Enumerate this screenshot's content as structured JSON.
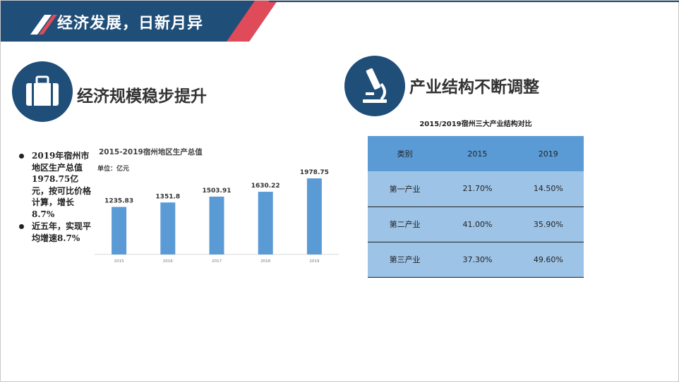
{
  "header": {
    "title": "经济发展，日新月异"
  },
  "left_section": {
    "title": "经济规模稳步提升",
    "icon": "briefcase-icon",
    "bullets": [
      "2019年宿州市地区生产总值1978.75亿元，按可比价格计算，增长8.7%",
      "近五年，实现平均增速8.7%"
    ]
  },
  "right_section": {
    "title": "产业结构不断调整",
    "icon": "microscope-icon"
  },
  "chart_data": {
    "type": "bar",
    "title": "2015-2019宿州地区生产总值",
    "unit": "单位：亿元",
    "categories": [
      "2015",
      "2016",
      "2017",
      "2018",
      "2019"
    ],
    "values": [
      1235.83,
      1351.8,
      1503.91,
      1630.22,
      1978.75
    ],
    "data_labels": [
      "1235.83",
      "1351.8",
      "1503.91",
      "1630.22",
      "1978.75"
    ],
    "ylim": [
      0,
      2200
    ],
    "grid": false,
    "bar_color": "#5b9bd5"
  },
  "table": {
    "title": "2015/2019宿州三大产业结构对比",
    "headers": [
      "类别",
      "2015",
      "2019"
    ],
    "rows": [
      [
        "第一产业",
        "21.70%",
        "14.50%"
      ],
      [
        "第二产业",
        "41.00%",
        "35.90%"
      ],
      [
        "第三产业",
        "37.30%",
        "49.60%"
      ]
    ]
  },
  "colors": {
    "navy": "#1f4e79",
    "red": "#e04b5a",
    "bar": "#5b9bd5",
    "table_header": "#5b9bd5",
    "table_body": "#9dc3e6"
  }
}
